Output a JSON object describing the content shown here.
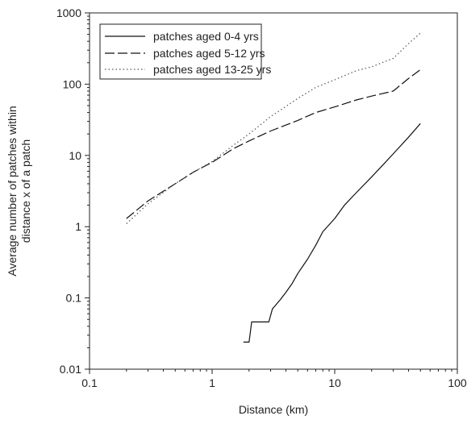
{
  "chart_data": {
    "type": "line",
    "xlabel": "Distance (km)",
    "ylabel_lines": [
      "Average number of patches within",
      "distance x of a patch"
    ],
    "x_scale": "log",
    "y_scale": "log",
    "xlim": [
      0.1,
      100
    ],
    "ylim": [
      0.01,
      1000
    ],
    "x_ticks": [
      0.1,
      1,
      10,
      100
    ],
    "x_tick_labels": [
      "0.1",
      "1",
      "10",
      "100"
    ],
    "y_ticks": [
      0.01,
      0.1,
      1,
      10,
      100,
      1000
    ],
    "y_tick_labels": [
      "0.01",
      "0.1",
      "1",
      "10",
      "100",
      "1000"
    ],
    "grid": false,
    "legend_position": "top-left",
    "series": [
      {
        "name": "patches aged 0-4 yrs",
        "line_style": "solid",
        "x": [
          1.8,
          2.0,
          2.1,
          2.5,
          2.9,
          3.1,
          3.6,
          4.0,
          4.5,
          5.0,
          6.0,
          7.0,
          8.0,
          10.0,
          12.0,
          15.0,
          20.0,
          25.0,
          30.0,
          40.0,
          50.0
        ],
        "y": [
          0.024,
          0.024,
          0.046,
          0.046,
          0.046,
          0.07,
          0.095,
          0.12,
          0.16,
          0.22,
          0.35,
          0.55,
          0.85,
          1.3,
          2.0,
          3.0,
          5.0,
          7.5,
          10.5,
          18.0,
          28.0
        ]
      },
      {
        "name": "patches aged 5-12 yrs",
        "line_style": "dashed",
        "x": [
          0.2,
          0.3,
          0.5,
          0.7,
          1.0,
          1.5,
          2.0,
          3.0,
          5.0,
          7.0,
          10.0,
          15.0,
          20.0,
          30.0,
          40.0,
          50.0
        ],
        "y": [
          1.3,
          2.3,
          4.0,
          5.8,
          8.0,
          12.5,
          16.0,
          22.0,
          31.0,
          40.0,
          48.0,
          60.0,
          68.0,
          80.0,
          120.0,
          160.0
        ]
      },
      {
        "name": "patches aged 13-25 yrs",
        "line_style": "dotted",
        "x": [
          0.2,
          0.3,
          0.5,
          0.7,
          1.0,
          1.5,
          2.0,
          3.0,
          5.0,
          7.0,
          10.0,
          15.0,
          20.0,
          30.0,
          40.0,
          50.0
        ],
        "y": [
          1.1,
          2.1,
          4.0,
          5.8,
          8.2,
          14.0,
          20.0,
          35.0,
          63.0,
          90.0,
          115.0,
          155.0,
          175.0,
          230.0,
          370.0,
          520.0
        ]
      }
    ]
  }
}
